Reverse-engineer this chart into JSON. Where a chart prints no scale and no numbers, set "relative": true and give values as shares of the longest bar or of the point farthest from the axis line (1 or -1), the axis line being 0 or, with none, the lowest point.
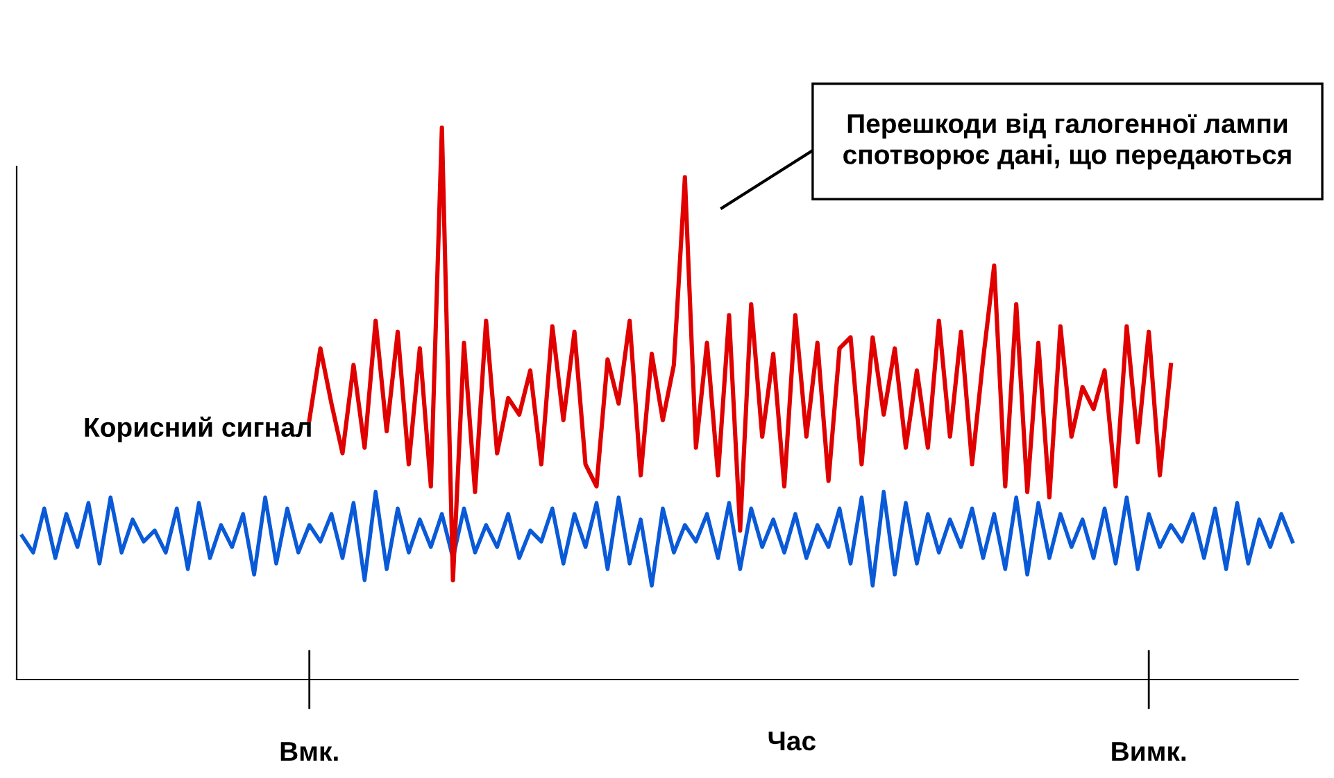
{
  "chart_data": {
    "type": "line",
    "relative": true,
    "xlabel": "Час",
    "tick_labels": "x",
    "grid": false,
    "legend": false,
    "marker": "none",
    "line_style": "solid",
    "categories": [
      null,
      null,
      null,
      null,
      null,
      null,
      null,
      null,
      null,
      null,
      null,
      null,
      null,
      null,
      null,
      null,
      null,
      null,
      null,
      null,
      null,
      null,
      null,
      null,
      null,
      null,
      "Вмк.",
      null,
      null,
      null,
      null,
      null,
      null,
      null,
      null,
      null,
      null,
      null,
      null,
      null,
      null,
      null,
      null,
      null,
      null,
      null,
      null,
      null,
      null,
      null,
      null,
      null,
      null,
      null,
      null,
      null,
      null,
      null,
      null,
      null,
      null,
      null,
      null,
      null,
      null,
      null,
      null,
      null,
      null,
      null,
      null,
      null,
      null,
      null,
      null,
      null,
      null,
      null,
      null,
      null,
      null,
      null,
      null,
      null,
      null,
      null,
      null,
      null,
      null,
      null,
      null,
      null,
      null,
      null,
      null,
      null,
      null,
      null,
      null,
      null,
      null,
      null,
      "Вимк.",
      null,
      null,
      null,
      null,
      null,
      null,
      null,
      null,
      null,
      null,
      null,
      null,
      null
    ],
    "annotations": [
      "Перешкоди від галогенної лампи спотворює дані, що передаються"
    ],
    "series": [
      {
        "name": "Корисний сигнал",
        "color": "#e00000",
        "values": [
          null,
          null,
          null,
          null,
          null,
          null,
          null,
          null,
          null,
          null,
          null,
          null,
          null,
          null,
          null,
          null,
          null,
          null,
          null,
          null,
          null,
          null,
          null,
          null,
          null,
          null,
          0.47,
          0.6,
          0.5,
          0.41,
          0.57,
          0.42,
          0.65,
          0.45,
          0.63,
          0.39,
          0.6,
          0.35,
          1,
          0.18,
          0.61,
          0.34,
          0.65,
          0.41,
          0.51,
          0.48,
          0.56,
          0.39,
          0.64,
          0.47,
          0.63,
          0.39,
          0.35,
          0.58,
          0.5,
          0.65,
          0.37,
          0.59,
          0.47,
          0.57,
          0.91,
          0.42,
          0.61,
          0.37,
          0.66,
          0.27,
          0.68,
          0.44,
          0.59,
          0.35,
          0.66,
          0.44,
          0.61,
          0.36,
          0.6,
          0.62,
          0.39,
          0.62,
          0.48,
          0.6,
          0.42,
          0.56,
          0.42,
          0.65,
          0.44,
          0.63,
          0.39,
          0.58,
          0.75,
          0.35,
          0.68,
          0.34,
          0.61,
          0.33,
          0.64,
          0.44,
          0.53,
          0.49,
          0.56,
          0.35,
          0.64,
          0.43,
          0.63,
          0.37,
          0.57,
          null,
          null,
          null,
          null,
          null,
          null,
          null,
          null,
          null,
          null,
          null
        ]
      },
      {
        "color": "#0a5ad8",
        "values": [
          0.26,
          0.23,
          0.31,
          0.22,
          0.3,
          0.24,
          0.32,
          0.21,
          0.33,
          0.23,
          0.29,
          0.25,
          0.27,
          0.23,
          0.31,
          0.2,
          0.32,
          0.22,
          0.28,
          0.24,
          0.3,
          0.19,
          0.33,
          0.21,
          0.31,
          0.23,
          0.28,
          0.25,
          0.3,
          0.22,
          0.32,
          0.18,
          0.34,
          0.2,
          0.31,
          0.23,
          0.29,
          0.24,
          0.3,
          0.22,
          0.31,
          0.23,
          0.28,
          0.24,
          0.3,
          0.22,
          0.27,
          0.25,
          0.31,
          0.21,
          0.3,
          0.24,
          0.32,
          0.2,
          0.33,
          0.21,
          0.29,
          0.17,
          0.31,
          0.23,
          0.28,
          0.25,
          0.3,
          0.22,
          0.32,
          0.2,
          0.31,
          0.24,
          0.29,
          0.23,
          0.3,
          0.22,
          0.28,
          0.24,
          0.31,
          0.21,
          0.33,
          0.17,
          0.34,
          0.19,
          0.32,
          0.21,
          0.3,
          0.23,
          0.29,
          0.24,
          0.31,
          0.22,
          0.3,
          0.2,
          0.33,
          0.19,
          0.32,
          0.22,
          0.3,
          0.24,
          0.29,
          0.22,
          0.31,
          0.21,
          0.33,
          0.2,
          0.3,
          0.24,
          0.28,
          0.25,
          0.3,
          0.22,
          0.31,
          0.2,
          0.32,
          0.21,
          0.29,
          0.24,
          0.3,
          0.25
        ]
      }
    ]
  }
}
